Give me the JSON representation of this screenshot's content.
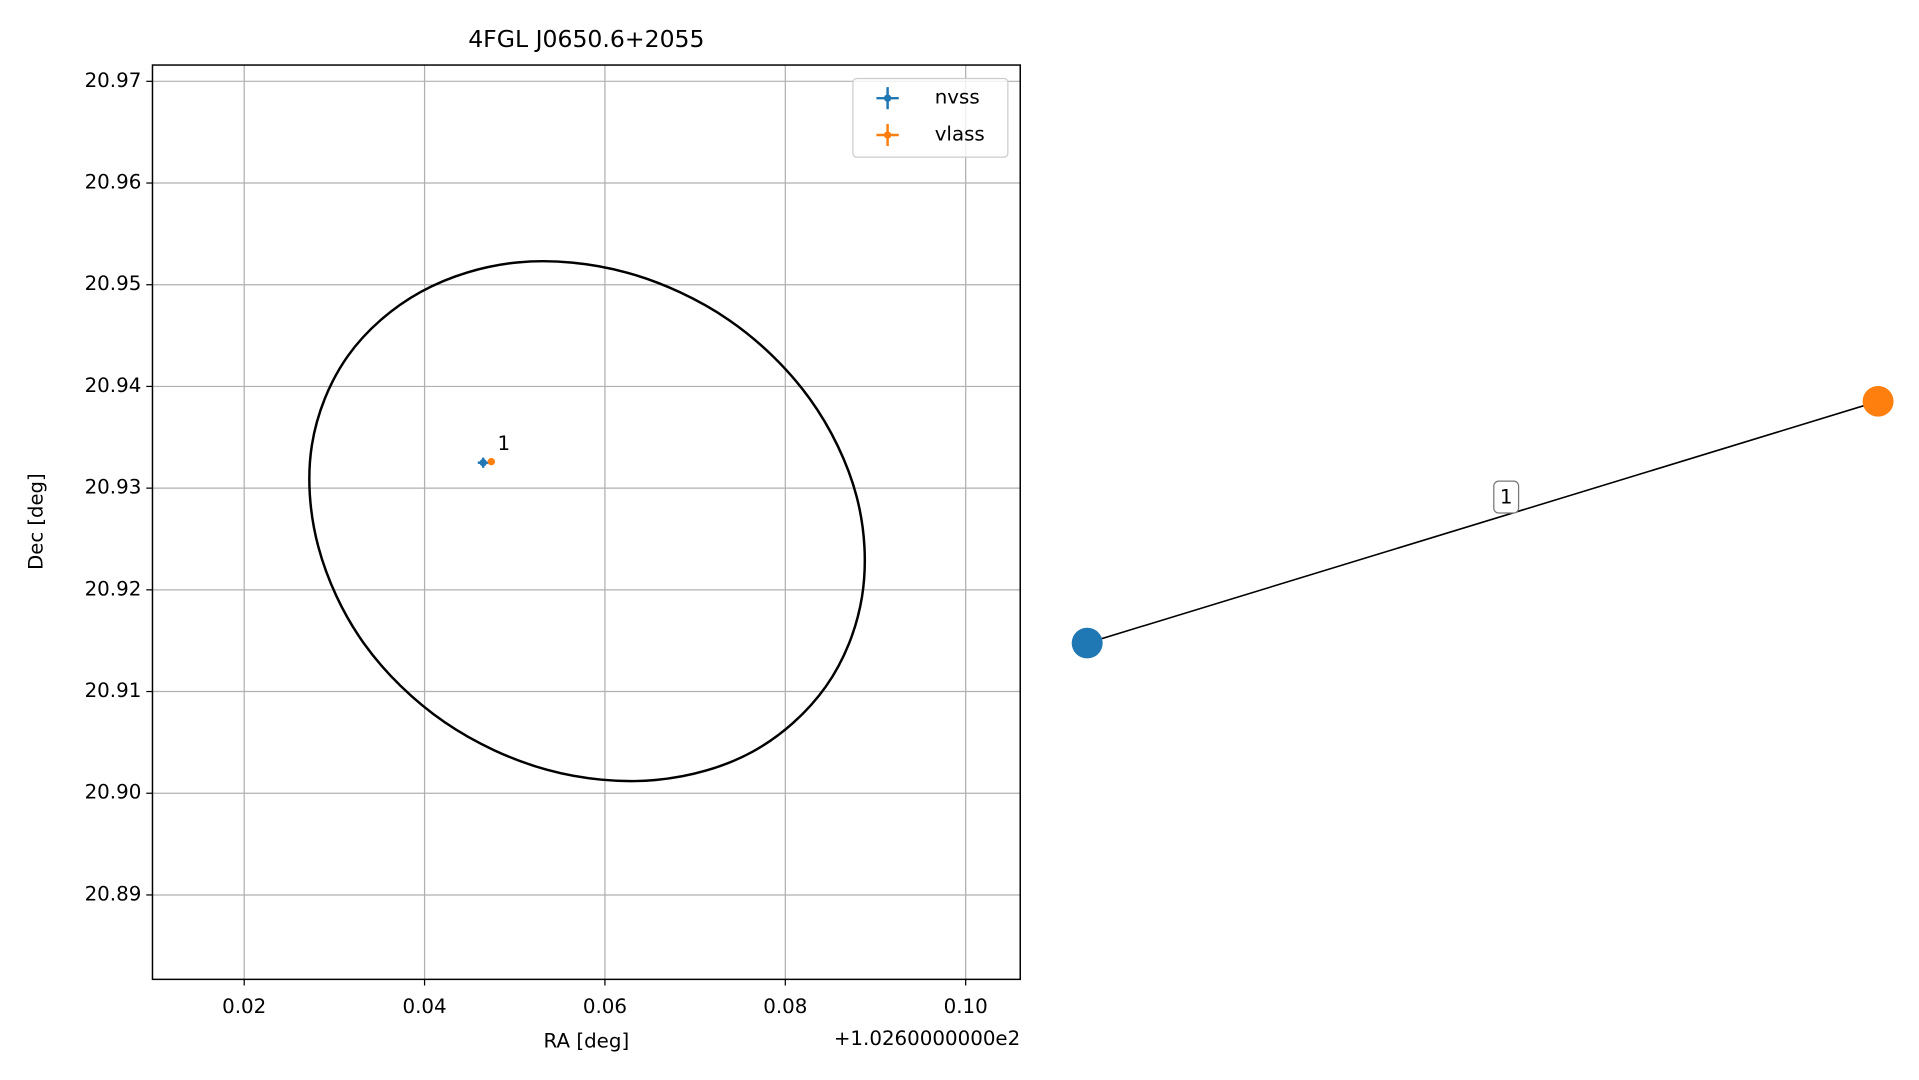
{
  "chart_data": [
    {
      "type": "scatter",
      "title": "4FGL J0650.6+2055",
      "xlabel": "RA [deg]",
      "ylabel": "Dec [deg]",
      "x_offset_label": "+1.0260000000e2",
      "series": [
        {
          "name": "nvss",
          "color": "#1f77b4",
          "x": [
            0.0465
          ],
          "values": [
            20.9325
          ],
          "xerr": [
            0.0006
          ],
          "yerr": [
            0.0005
          ]
        },
        {
          "name": "vlass",
          "color": "#ff7f0e",
          "x": [
            0.0474
          ],
          "values": [
            20.9326
          ],
          "xerr": [
            0.0003
          ],
          "yerr": [
            0.0003
          ]
        }
      ],
      "annotations": [
        {
          "text": "1"
        }
      ],
      "ellipse": {
        "color": "#000000",
        "x": [
          0.0845,
          0.0764,
          0.0656,
          0.0536,
          0.0422,
          0.0333,
          0.0282,
          0.0275,
          0.0315,
          0.0396,
          0.0504,
          0.0624,
          0.0738,
          0.0827,
          0.0879,
          0.0885
        ],
        "values": [
          20.9105,
          20.9041,
          20.9013,
          20.9023,
          20.907,
          20.9147,
          20.9243,
          20.9342,
          20.943,
          20.9493,
          20.9522,
          20.9512,
          20.9465,
          20.9388,
          20.9292,
          20.9193
        ]
      },
      "xlim": [
        0.00983,
        0.10605
      ],
      "ylim": [
        20.8817,
        20.9716
      ],
      "xticks": [
        0.02,
        0.04,
        0.06,
        0.08,
        {
          "value": 0.1,
          "label": "0.10"
        }
      ],
      "yticks": [
        20.89,
        {
          "value": 20.9,
          "label": "20.90"
        },
        20.91,
        20.92,
        20.93,
        20.94,
        20.95,
        20.96,
        20.97
      ],
      "grid": true,
      "legend": "upper right"
    },
    {
      "type": "network",
      "nodes": [
        {
          "color": "#1f77b4"
        },
        {
          "color": "#ff7f0e"
        }
      ],
      "edges": [
        {
          "label": "1"
        }
      ]
    }
  ]
}
